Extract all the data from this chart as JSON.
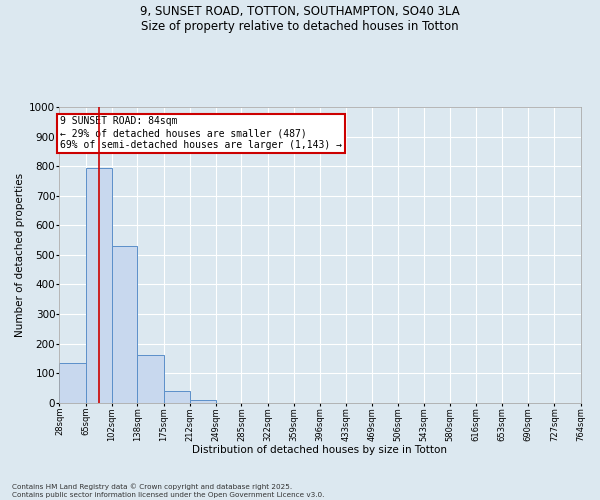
{
  "title_line1": "9, SUNSET ROAD, TOTTON, SOUTHAMPTON, SO40 3LA",
  "title_line2": "Size of property relative to detached houses in Totton",
  "xlabel": "Distribution of detached houses by size in Totton",
  "ylabel": "Number of detached properties",
  "bar_edges": [
    28,
    65,
    102,
    138,
    175,
    212,
    249,
    285,
    322,
    359,
    396,
    433,
    469,
    506,
    543,
    580,
    616,
    653,
    690,
    727,
    764
  ],
  "bar_heights": [
    135,
    795,
    530,
    160,
    40,
    10,
    0,
    0,
    0,
    0,
    0,
    0,
    0,
    0,
    0,
    0,
    0,
    0,
    0,
    0
  ],
  "bar_color": "#c8d8ee",
  "bar_edgecolor": "#5b8fc9",
  "bar_linewidth": 0.7,
  "vline_x": 84,
  "vline_color": "#cc0000",
  "vline_linewidth": 1.2,
  "annotation_text": "9 SUNSET ROAD: 84sqm\n← 29% of detached houses are smaller (487)\n69% of semi-detached houses are larger (1,143) →",
  "annotation_box_edgecolor": "#cc0000",
  "annotation_text_color": "#000000",
  "annotation_box_facecolor": "#ffffff",
  "ylim": [
    0,
    1000
  ],
  "yticks": [
    0,
    100,
    200,
    300,
    400,
    500,
    600,
    700,
    800,
    900,
    1000
  ],
  "figure_bg": "#dce8f0",
  "plot_bg": "#dce8f0",
  "grid_color": "#ffffff",
  "footnote": "Contains HM Land Registry data © Crown copyright and database right 2025.\nContains public sector information licensed under the Open Government Licence v3.0."
}
